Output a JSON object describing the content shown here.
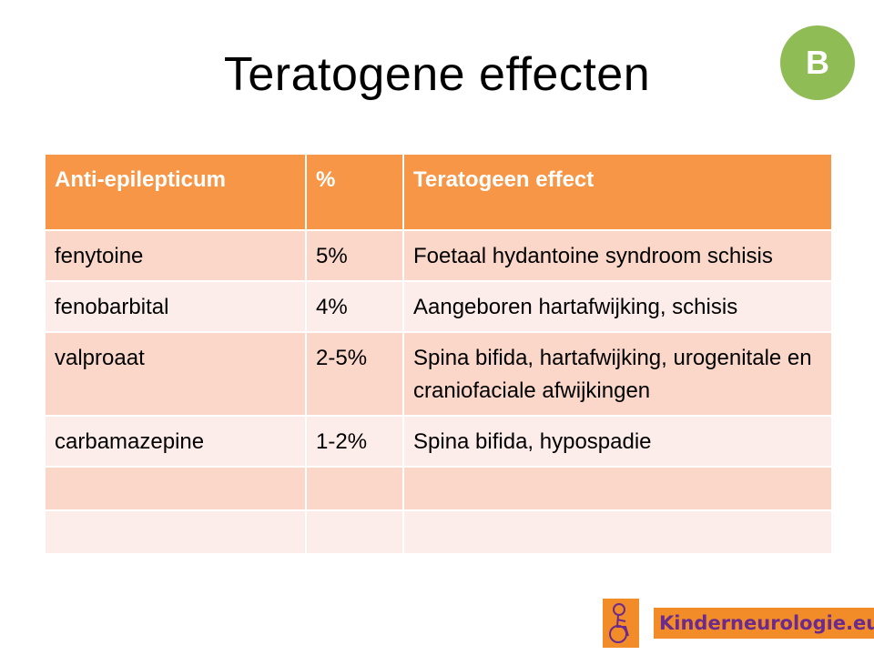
{
  "slide": {
    "title": "Teratogene effecten",
    "badge": "B"
  },
  "table": {
    "headers": [
      "Anti-epilepticum",
      "%",
      "Teratogeen effect"
    ],
    "rows": [
      [
        "fenytoine",
        "5%",
        "Foetaal hydantoine syndroom schisis"
      ],
      [
        "fenobarbital",
        "4%",
        "Aangeboren hartafwijking, schisis"
      ],
      [
        "valproaat",
        "2-5%",
        "Spina bifida, hartafwijking, urogenitale en craniofaciale afwijkingen"
      ],
      [
        "carbamazepine",
        "1-2%",
        "Spina bifida, hypospadie"
      ],
      [
        "",
        "",
        ""
      ],
      [
        "",
        "",
        ""
      ]
    ]
  },
  "logo": {
    "text": "Kinderneurologie.eu",
    "icon": "child-wheelchair-logo-icon"
  },
  "colors": {
    "header": "#f79646",
    "row_odd": "#fbd7c9",
    "row_even": "#fdedea",
    "badge": "#8fbc55",
    "logo_bg": "#f28c28",
    "logo_text": "#6b2a8c"
  }
}
